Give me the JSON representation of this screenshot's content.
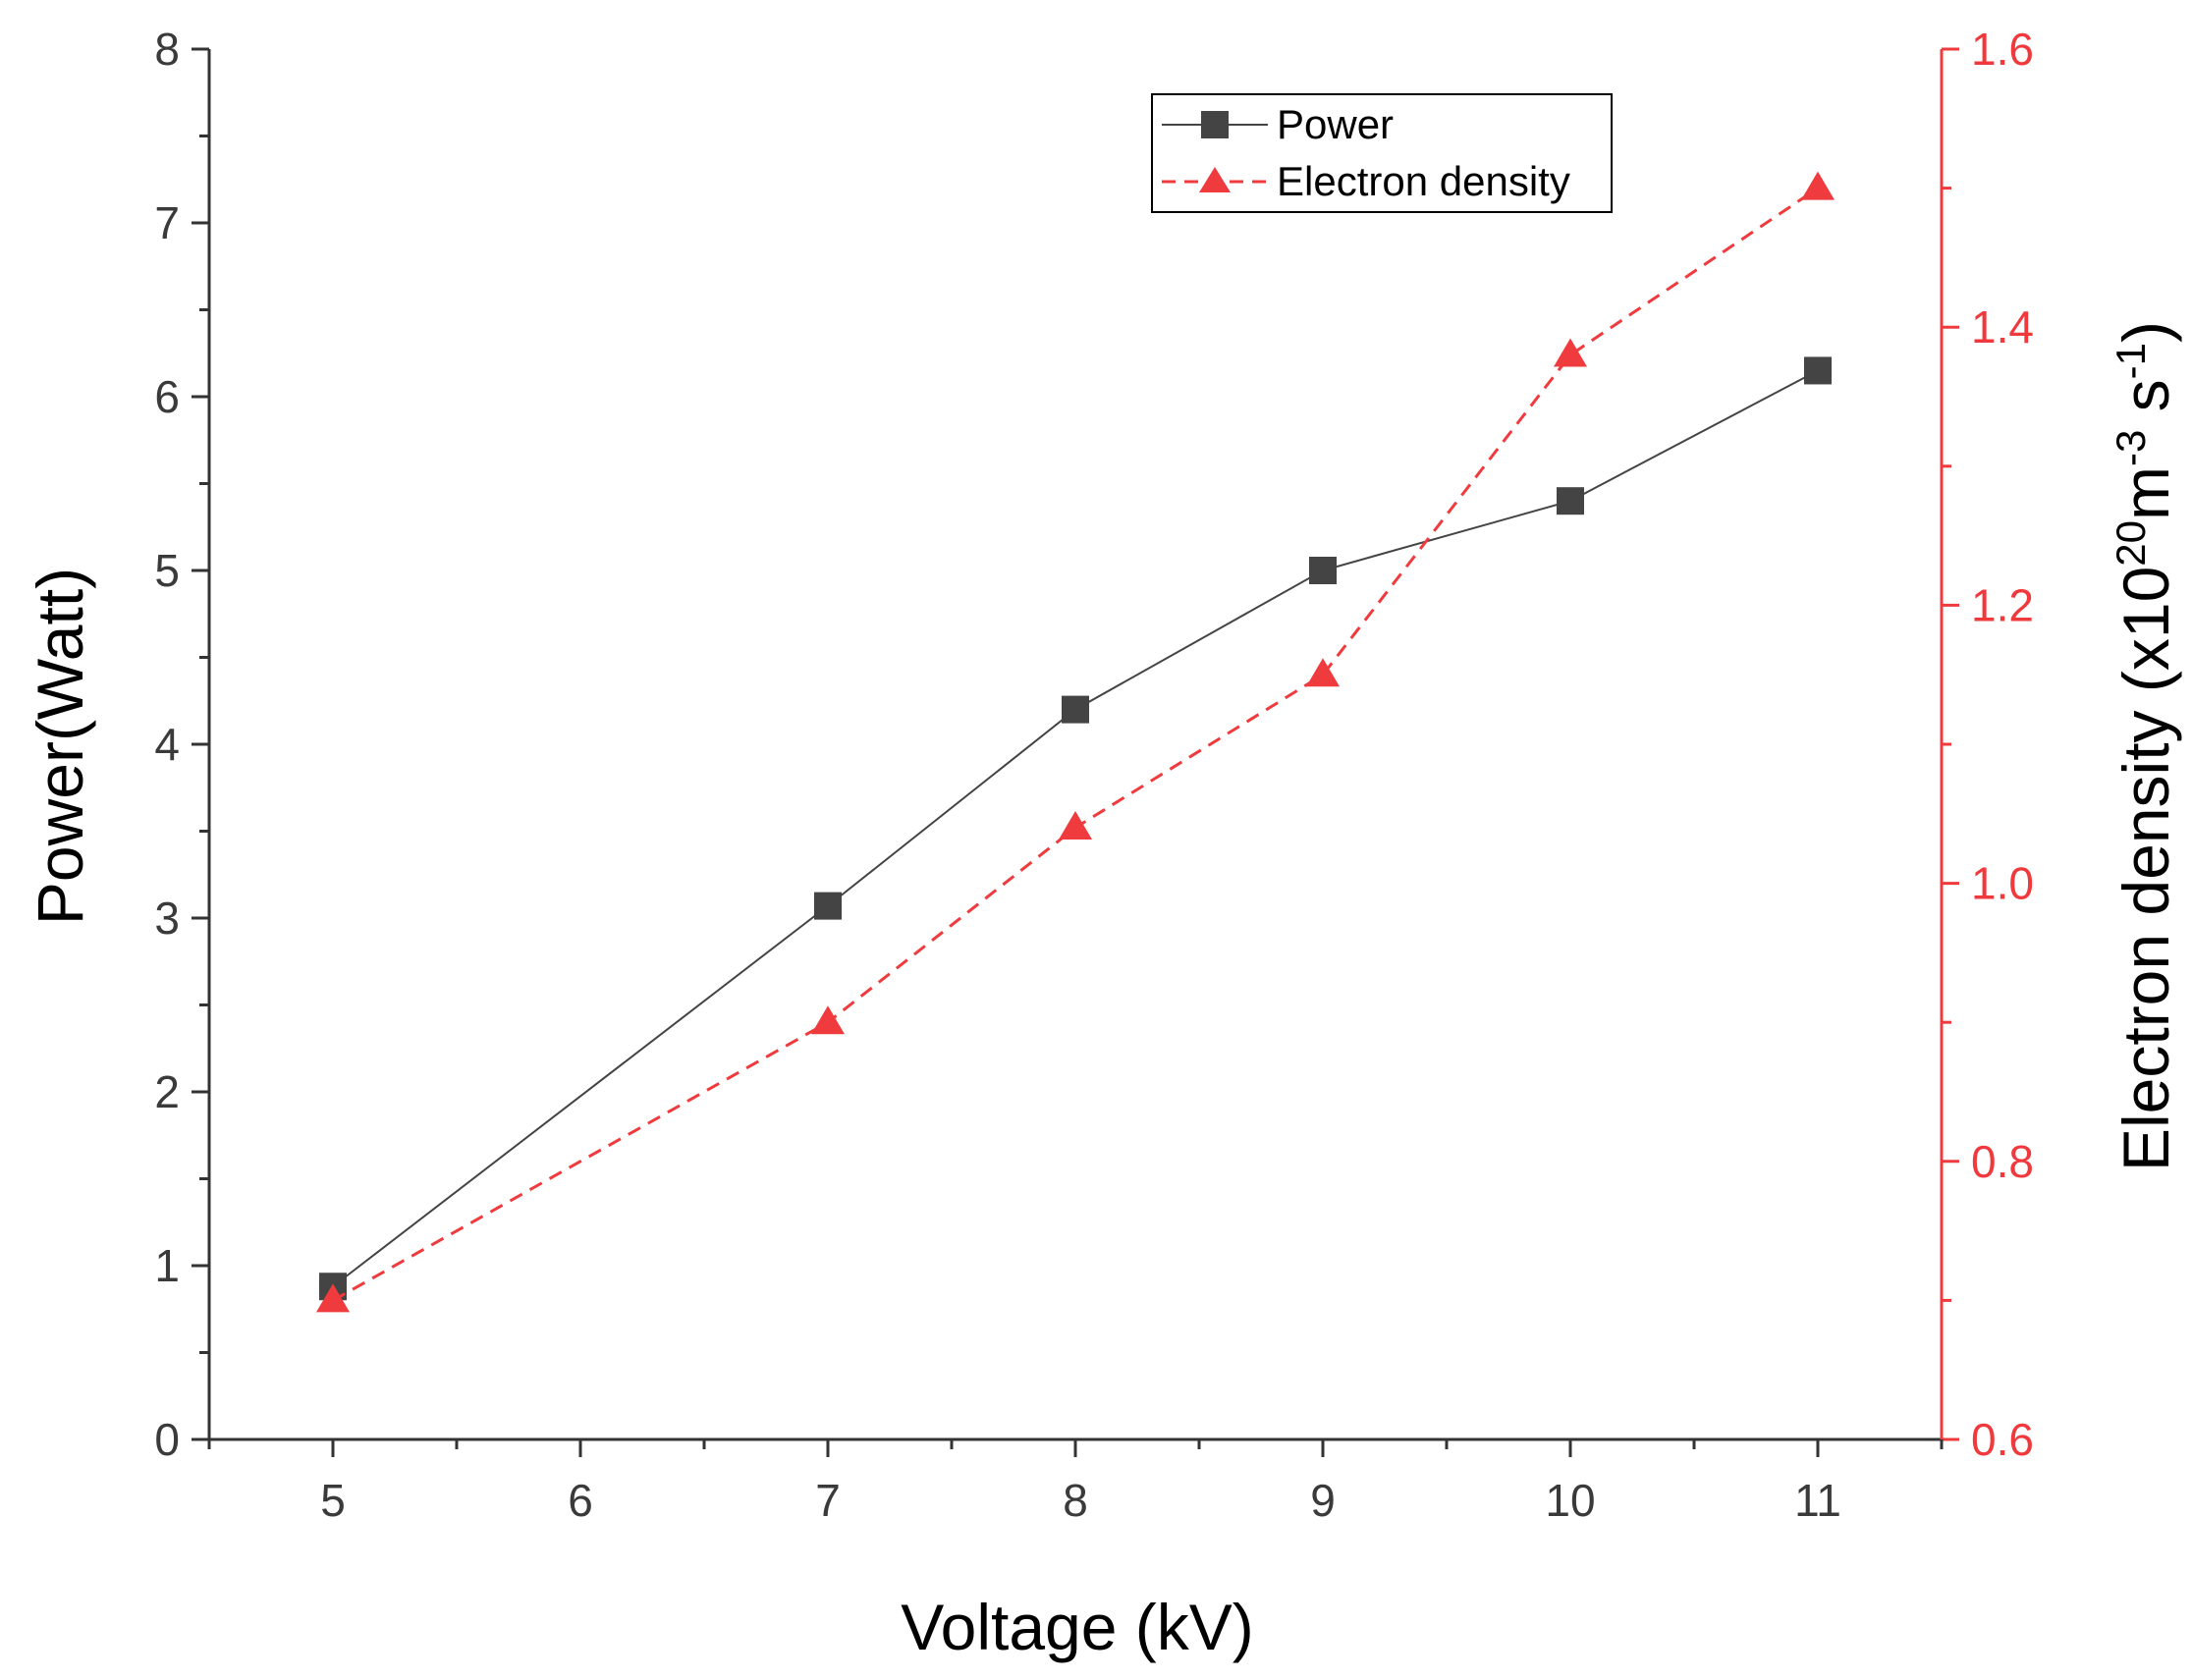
{
  "colors": {
    "power": "#444444",
    "density": "#ef3b3e",
    "left_axis": "#333333",
    "right_axis": "#ef3b3e"
  },
  "chart_data": {
    "type": "line",
    "xlabel": "Voltage (kV)",
    "ylabel": "Power(Watt)",
    "y2label": {
      "base": "Electron density (x10",
      "sup1": "20",
      "mid1": "m",
      "sup2": "-3",
      "mid2": " s",
      "sup3": "-1",
      "end": ")"
    },
    "xlim": [
      4.5,
      11.5
    ],
    "ylim": [
      0,
      8
    ],
    "y2lim": [
      0.6,
      1.6
    ],
    "x_ticks": [
      5,
      6,
      7,
      8,
      9,
      10,
      11
    ],
    "x_tick_labels": [
      "5",
      "6",
      "7",
      "8",
      "9",
      "10",
      "11"
    ],
    "y_ticks": [
      0,
      1,
      2,
      3,
      4,
      5,
      6,
      7,
      8
    ],
    "y_tick_labels": [
      "0",
      "1",
      "2",
      "3",
      "4",
      "5",
      "6",
      "7",
      "8"
    ],
    "y2_ticks": [
      0.6,
      0.8,
      1.0,
      1.2,
      1.4,
      1.6
    ],
    "y2_tick_labels": [
      "0.6",
      "0.8",
      "1.0",
      "1.2",
      "1.4",
      "1.6"
    ],
    "legend_position": "top-right",
    "series": [
      {
        "name": "Power",
        "axis": "left",
        "marker": "square",
        "line": "solid",
        "x": [
          5,
          7,
          8,
          9,
          10,
          11
        ],
        "values": [
          0.88,
          3.07,
          4.2,
          5.0,
          5.4,
          6.15
        ]
      },
      {
        "name": "Electron density",
        "axis": "right",
        "marker": "triangle",
        "line": "dashed",
        "x": [
          5,
          7,
          8,
          9,
          10,
          11
        ],
        "values": [
          0.7,
          0.9,
          1.04,
          1.15,
          1.38,
          1.5
        ]
      }
    ]
  }
}
